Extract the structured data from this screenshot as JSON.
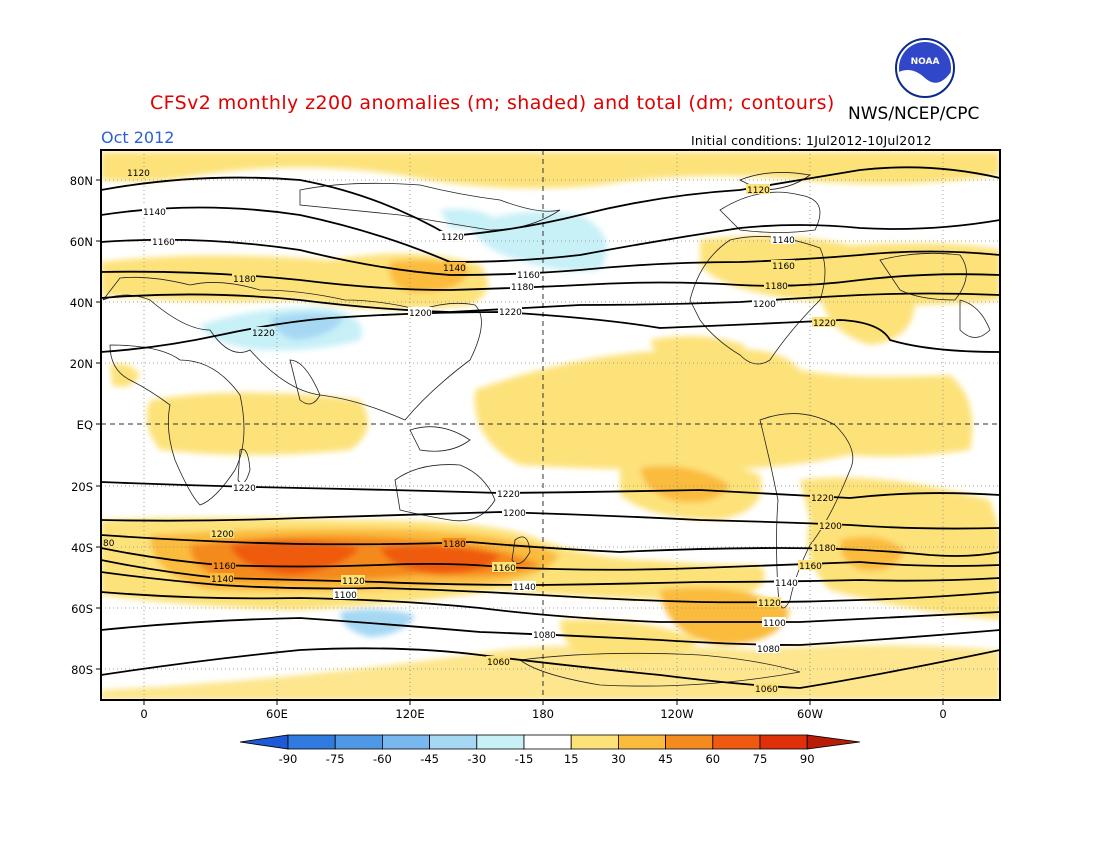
{
  "header": {
    "title": "CFSv2 monthly z200 anomalies (m; shaded) and total (dm; contours)",
    "organization": "NWS/NCEP/CPC",
    "month": "Oct 2012",
    "initial_conditions": "Initial conditions: 1Jul2012-10Jul2012"
  },
  "logo": {
    "name": "noaa-logo",
    "text": "NOAA"
  },
  "map": {
    "lat_labels": [
      "80N",
      "60N",
      "40N",
      "20N",
      "EQ",
      "20S",
      "40S",
      "60S",
      "80S"
    ],
    "lon_labels": [
      "0",
      "60E",
      "120E",
      "180",
      "120W",
      "60W",
      "0"
    ]
  },
  "contours": [
    {
      "value": "1060",
      "label": "1060"
    },
    {
      "value": "1080",
      "label": "1080"
    },
    {
      "value": "1100",
      "label": "1100"
    },
    {
      "value": "1120",
      "label": "1120"
    },
    {
      "value": "1140",
      "label": "1140"
    },
    {
      "value": "1160",
      "label": "1160"
    },
    {
      "value": "1180",
      "label": "1180"
    },
    {
      "value": "1200",
      "label": "1200"
    },
    {
      "value": "1220",
      "label": "1220"
    },
    {
      "value": "80",
      "label": "80"
    }
  ],
  "colorbar": {
    "labels": [
      "-90",
      "-75",
      "-60",
      "-45",
      "-30",
      "-15",
      "15",
      "30",
      "45",
      "60",
      "75",
      "90"
    ],
    "colors": [
      "#1e5ad6",
      "#2f7be0",
      "#4f98e6",
      "#78b8ef",
      "#a6d8f4",
      "#c8f0f7",
      "#ffffff",
      "#fde27a",
      "#fbbb3c",
      "#f58a1e",
      "#ef5a10",
      "#e0300a",
      "#b81c08"
    ]
  },
  "anomaly_colors": {
    "pos15": "#fde27a",
    "pos30": "#fbbb3c",
    "pos45": "#f58a1e",
    "pos60": "#ef5a10",
    "neg15": "#c8f0f7",
    "neg30": "#a6d8f4",
    "neg45": "#78b8ef"
  }
}
